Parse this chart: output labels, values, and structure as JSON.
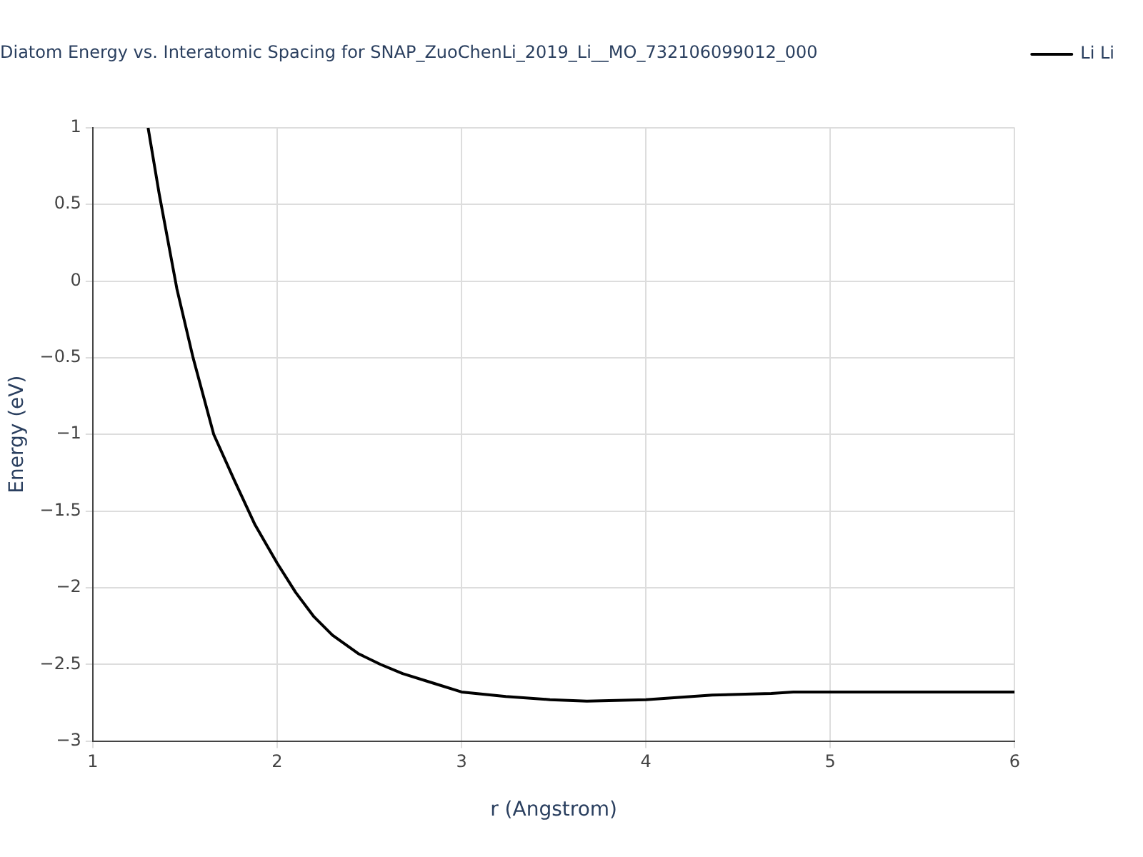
{
  "chart_data": {
    "type": "line",
    "title": "Diatom Energy vs. Interatomic Spacing for SNAP_ZuoChenLi_2019_Li__MO_732106099012_000",
    "xlabel": "r (Angstrom)",
    "ylabel": "Energy (eV)",
    "x": [
      1.3,
      1.36,
      1.456,
      1.544,
      1.656,
      1.768,
      1.88,
      2.0,
      2.1,
      2.2,
      2.3,
      2.44,
      2.56,
      2.68,
      2.84,
      3.0,
      3.24,
      3.48,
      3.68,
      4.0,
      4.36,
      4.68,
      4.8,
      5.16,
      6.0
    ],
    "series": [
      {
        "name": "Li Li",
        "color": "#000000",
        "values": [
          1.0,
          0.57,
          -0.05,
          -0.5,
          -1.0,
          -1.3,
          -1.59,
          -1.84,
          -2.03,
          -2.19,
          -2.31,
          -2.43,
          -2.5,
          -2.56,
          -2.62,
          -2.68,
          -2.71,
          -2.73,
          -2.74,
          -2.73,
          -2.7,
          -2.69,
          -2.68,
          -2.68,
          -2.68
        ]
      }
    ],
    "xlim": [
      1,
      6
    ],
    "xticks": [
      1,
      2,
      3,
      4,
      5,
      6
    ],
    "ylim": [
      -3,
      1
    ],
    "yticks": [
      {
        "value": -3,
        "label": "−3"
      },
      {
        "value": -2.5,
        "label": "−2.5"
      },
      {
        "value": -2,
        "label": "−2"
      },
      {
        "value": -1.5,
        "label": "−1.5"
      },
      {
        "value": -1,
        "label": "−1"
      },
      {
        "value": -0.5,
        "label": "−0.5"
      },
      0,
      0.5,
      1
    ],
    "grid": true,
    "legend": "top right",
    "marker": "none",
    "line_style": "solid"
  }
}
